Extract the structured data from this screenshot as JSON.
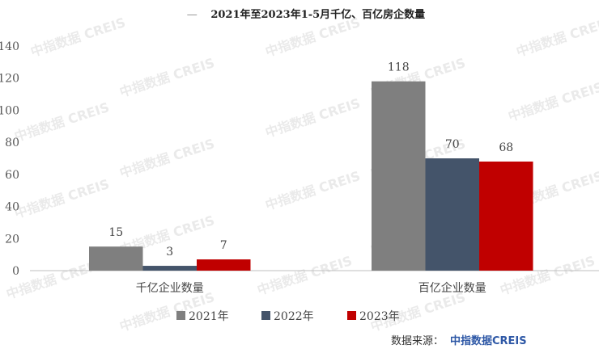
{
  "chart_data": {
    "type": "bar",
    "title": "2021年至2023年1-5月千亿、百亿房企数量",
    "title_prefix": "—",
    "categories": [
      "千亿企业数量",
      "百亿企业数量"
    ],
    "series": [
      {
        "name": "2021年",
        "color": "#7f7f7f",
        "values": [
          15,
          118
        ]
      },
      {
        "name": "2022年",
        "color": "#44546a",
        "values": [
          3,
          70
        ]
      },
      {
        "name": "2023年",
        "color": "#c00000",
        "values": [
          7,
          68
        ]
      }
    ],
    "yticks": [
      0,
      20,
      40,
      60,
      80,
      100,
      120,
      140
    ],
    "ylim": [
      0,
      140
    ],
    "grid": false,
    "legend": "bottom-center"
  },
  "source": {
    "label": "数据来源：",
    "brand": "中指数据CREIS"
  },
  "watermark": {
    "text": "中指数据 CREIS"
  }
}
